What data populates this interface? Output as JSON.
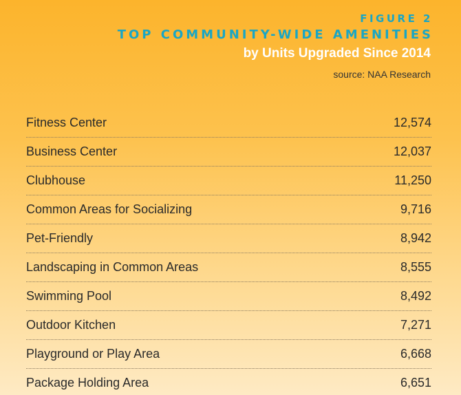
{
  "figure_label": "FIGURE 2",
  "colors": {
    "title": "#19a6c5",
    "subtitle": "#ffffff",
    "background_top": "#fcb42c",
    "background_bottom": "#feeac4"
  },
  "chart_data": {
    "type": "table",
    "title": "TOP COMMUNITY-WIDE AMENITIES",
    "subtitle": "by Units Upgraded Since 2014",
    "source": "source: NAA Research",
    "categories": [
      "Fitness Center",
      "Business Center",
      "Clubhouse",
      "Common Areas for Socializing",
      "Pet-Friendly",
      "Landscaping in Common Areas",
      "Swimming Pool",
      "Outdoor Kitchen",
      "Playground or Play Area",
      "Package Holding Area"
    ],
    "values": [
      12574,
      12037,
      11250,
      9716,
      8942,
      8555,
      8492,
      7271,
      6668,
      6651
    ],
    "display_values": [
      "12,574",
      "12,037",
      "11,250",
      "9,716",
      "8,942",
      "8,555",
      "8,492",
      "7,271",
      "6,668",
      "6,651"
    ]
  }
}
